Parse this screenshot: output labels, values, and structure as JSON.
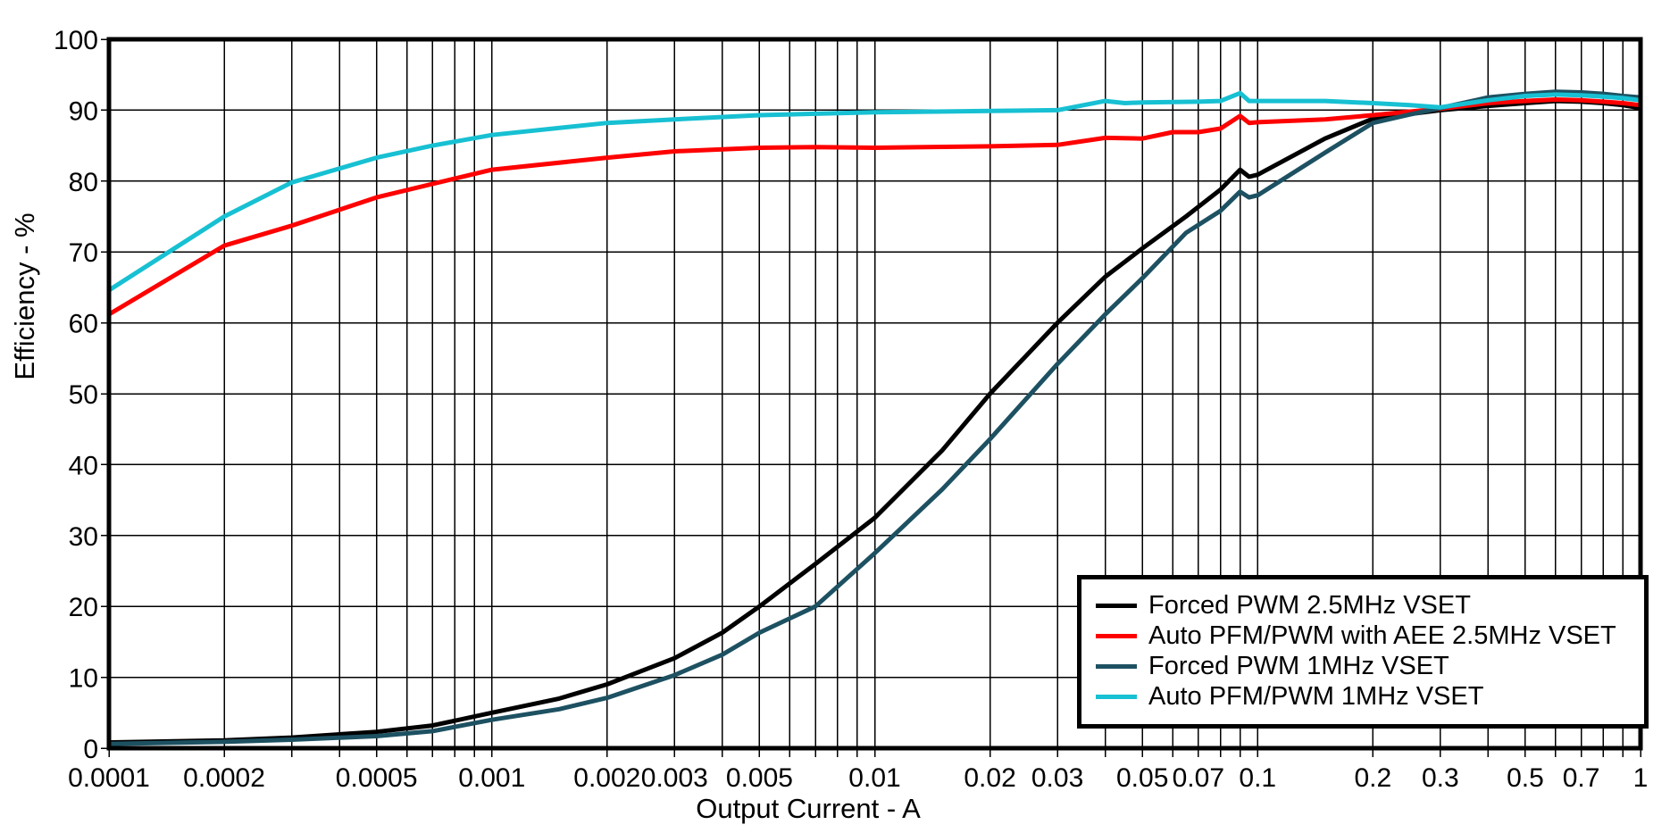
{
  "chart_data": {
    "type": "line",
    "title": "",
    "xlabel": "Output Current - A",
    "ylabel": "Efficiency - %",
    "x_scale": "log",
    "xlim": [
      0.0001,
      1
    ],
    "ylim": [
      0,
      100
    ],
    "grid": "log-minor vertical lines, horizontal lines every 10%",
    "legend_position": "lower right",
    "axis_color": "#000000",
    "background_color": "#ffffff",
    "y_ticks": [
      {
        "v": 0,
        "label": "0"
      },
      {
        "v": 10,
        "label": "10"
      },
      {
        "v": 20,
        "label": "20"
      },
      {
        "v": 30,
        "label": "30"
      },
      {
        "v": 40,
        "label": "40"
      },
      {
        "v": 50,
        "label": "50"
      },
      {
        "v": 60,
        "label": "60"
      },
      {
        "v": 70,
        "label": "70"
      },
      {
        "v": 80,
        "label": "80"
      },
      {
        "v": 90,
        "label": "90"
      },
      {
        "v": 100,
        "label": "100"
      }
    ],
    "x_ticks": [
      {
        "v": 0.0001,
        "label": "0.0001"
      },
      {
        "v": 0.0002,
        "label": "0.0002"
      },
      {
        "v": 0.0005,
        "label": "0.0005"
      },
      {
        "v": 0.001,
        "label": "0.001"
      },
      {
        "v": 0.002,
        "label": "0.002"
      },
      {
        "v": 0.003,
        "label": "0.003"
      },
      {
        "v": 0.005,
        "label": "0.005"
      },
      {
        "v": 0.01,
        "label": "0.01"
      },
      {
        "v": 0.02,
        "label": "0.02"
      },
      {
        "v": 0.03,
        "label": "0.03"
      },
      {
        "v": 0.05,
        "label": "0.05"
      },
      {
        "v": 0.07,
        "label": "0.07"
      },
      {
        "v": 0.1,
        "label": "0.1"
      },
      {
        "v": 0.2,
        "label": "0.2"
      },
      {
        "v": 0.3,
        "label": "0.3"
      },
      {
        "v": 0.5,
        "label": "0.5"
      },
      {
        "v": 0.7,
        "label": "0.7"
      },
      {
        "v": 1,
        "label": "1"
      }
    ],
    "series": [
      {
        "name": "Forced PWM 2.5MHz VSET",
        "color": "#000000",
        "points": [
          [
            0.0001,
            0.8
          ],
          [
            0.0002,
            1.1
          ],
          [
            0.0003,
            1.5
          ],
          [
            0.0005,
            2.3
          ],
          [
            0.0007,
            3.2
          ],
          [
            0.001,
            5.0
          ],
          [
            0.0015,
            7.0
          ],
          [
            0.002,
            9.0
          ],
          [
            0.003,
            12.7
          ],
          [
            0.004,
            16.3
          ],
          [
            0.005,
            20.0
          ],
          [
            0.007,
            26.0
          ],
          [
            0.01,
            32.5
          ],
          [
            0.015,
            42.0
          ],
          [
            0.02,
            50.0
          ],
          [
            0.03,
            60.0
          ],
          [
            0.04,
            66.5
          ],
          [
            0.05,
            70.5
          ],
          [
            0.065,
            75.0
          ],
          [
            0.08,
            78.8
          ],
          [
            0.09,
            81.6
          ],
          [
            0.095,
            80.6
          ],
          [
            0.1,
            80.9
          ],
          [
            0.15,
            86.0
          ],
          [
            0.2,
            88.8
          ],
          [
            0.3,
            90.0
          ],
          [
            0.4,
            90.6
          ],
          [
            0.5,
            91.0
          ],
          [
            0.6,
            91.3
          ],
          [
            0.7,
            91.2
          ],
          [
            0.8,
            91.0
          ],
          [
            0.9,
            90.7
          ],
          [
            1,
            90.3
          ]
        ]
      },
      {
        "name": "Auto PFM/PWM with AEE 2.5MHz VSET",
        "color": "#fe0000",
        "points": [
          [
            0.0001,
            61.2
          ],
          [
            0.0002,
            70.9
          ],
          [
            0.0003,
            73.7
          ],
          [
            0.0005,
            77.7
          ],
          [
            0.0007,
            79.6
          ],
          [
            0.001,
            81.6
          ],
          [
            0.002,
            83.3
          ],
          [
            0.003,
            84.2
          ],
          [
            0.005,
            84.7
          ],
          [
            0.007,
            84.8
          ],
          [
            0.01,
            84.7
          ],
          [
            0.02,
            84.9
          ],
          [
            0.03,
            85.1
          ],
          [
            0.04,
            86.1
          ],
          [
            0.05,
            86.0
          ],
          [
            0.06,
            86.9
          ],
          [
            0.07,
            86.9
          ],
          [
            0.08,
            87.4
          ],
          [
            0.09,
            89.2
          ],
          [
            0.095,
            88.2
          ],
          [
            0.1,
            88.3
          ],
          [
            0.15,
            88.7
          ],
          [
            0.2,
            89.3
          ],
          [
            0.3,
            90.2
          ],
          [
            0.4,
            91.0
          ],
          [
            0.5,
            91.3
          ],
          [
            0.6,
            91.5
          ],
          [
            0.7,
            91.4
          ],
          [
            0.8,
            91.2
          ],
          [
            0.9,
            91.0
          ],
          [
            1,
            90.7
          ]
        ]
      },
      {
        "name": "Forced PWM 1MHz VSET",
        "color": "#1d5162",
        "points": [
          [
            0.0001,
            0.6
          ],
          [
            0.0002,
            0.9
          ],
          [
            0.0003,
            1.2
          ],
          [
            0.0005,
            1.7
          ],
          [
            0.0007,
            2.4
          ],
          [
            0.001,
            4.0
          ],
          [
            0.0015,
            5.5
          ],
          [
            0.002,
            7.1
          ],
          [
            0.003,
            10.3
          ],
          [
            0.004,
            13.2
          ],
          [
            0.005,
            16.3
          ],
          [
            0.007,
            20.0
          ],
          [
            0.01,
            27.5
          ],
          [
            0.015,
            36.5
          ],
          [
            0.02,
            43.6
          ],
          [
            0.03,
            54.2
          ],
          [
            0.04,
            61.2
          ],
          [
            0.05,
            66.3
          ],
          [
            0.065,
            72.7
          ],
          [
            0.08,
            75.8
          ],
          [
            0.09,
            78.5
          ],
          [
            0.095,
            77.7
          ],
          [
            0.1,
            78.0
          ],
          [
            0.15,
            84.0
          ],
          [
            0.2,
            88.2
          ],
          [
            0.25,
            89.4
          ],
          [
            0.3,
            90.3
          ],
          [
            0.4,
            91.8
          ],
          [
            0.5,
            92.3
          ],
          [
            0.6,
            92.6
          ],
          [
            0.7,
            92.5
          ],
          [
            0.8,
            92.3
          ],
          [
            0.9,
            92.0
          ],
          [
            1,
            91.8
          ]
        ]
      },
      {
        "name": "Auto PFM/PWM 1MHz VSET",
        "color": "#17c0d2",
        "points": [
          [
            0.0001,
            64.6
          ],
          [
            0.0002,
            75.0
          ],
          [
            0.0003,
            79.8
          ],
          [
            0.0005,
            83.3
          ],
          [
            0.0007,
            85.0
          ],
          [
            0.001,
            86.5
          ],
          [
            0.002,
            88.2
          ],
          [
            0.003,
            88.7
          ],
          [
            0.005,
            89.3
          ],
          [
            0.007,
            89.5
          ],
          [
            0.01,
            89.7
          ],
          [
            0.02,
            89.9
          ],
          [
            0.03,
            90.0
          ],
          [
            0.04,
            91.3
          ],
          [
            0.045,
            91.0
          ],
          [
            0.05,
            91.1
          ],
          [
            0.07,
            91.2
          ],
          [
            0.08,
            91.3
          ],
          [
            0.09,
            92.4
          ],
          [
            0.095,
            91.3
          ],
          [
            0.1,
            91.3
          ],
          [
            0.15,
            91.3
          ],
          [
            0.2,
            91.0
          ],
          [
            0.25,
            90.7
          ],
          [
            0.3,
            90.4
          ],
          [
            0.4,
            91.4
          ],
          [
            0.5,
            92.0
          ],
          [
            0.6,
            92.2
          ],
          [
            0.7,
            92.1
          ],
          [
            0.8,
            91.9
          ],
          [
            0.9,
            91.7
          ],
          [
            1,
            91.4
          ]
        ]
      }
    ]
  }
}
